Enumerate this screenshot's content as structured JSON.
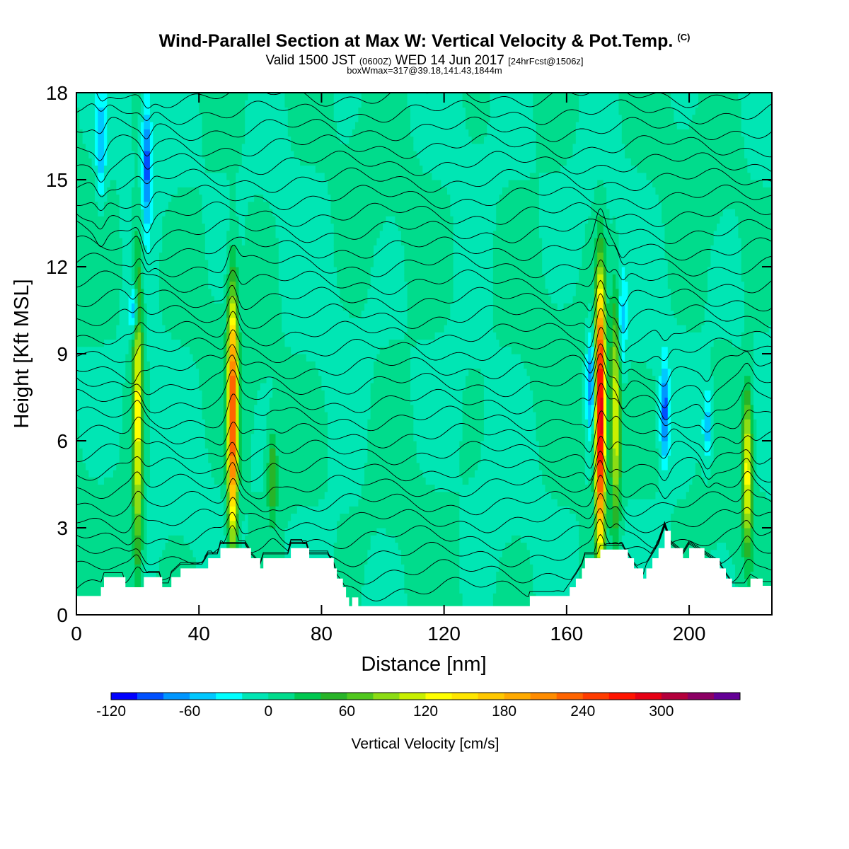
{
  "header": {
    "title": "Wind-Parallel Section at Max W: Vertical Velocity & Pot.Temp.",
    "copyright": "(C)",
    "subtitle_main": "Valid 1500 JST",
    "subtitle_utc": "(0600Z)",
    "subtitle_date": "WED 14 Jun 2017",
    "subtitle_fcst": "[24hrFcst@1506z]",
    "subtitle2": "boxWmax=317@39.18,141.43,1844m"
  },
  "chart_data": {
    "type": "heatmap",
    "xlabel": "Distance [nm]",
    "ylabel": "Height [Kft MSL]",
    "xlim": [
      0,
      227
    ],
    "ylim": [
      0,
      18
    ],
    "x_ticks": [
      0,
      40,
      80,
      120,
      160,
      200
    ],
    "y_ticks": [
      0,
      3,
      6,
      9,
      12,
      15,
      18
    ],
    "colorbar": {
      "label": "Vertical Velocity [cm/s]",
      "min": -120,
      "max": 340,
      "step": 20,
      "tick_labels": [
        -120,
        -60,
        0,
        60,
        120,
        180,
        240,
        300
      ],
      "colors": [
        "#0000ff",
        "#0050ff",
        "#0096ff",
        "#00c8ff",
        "#00ffff",
        "#00e6b4",
        "#00dc8c",
        "#00c850",
        "#28b428",
        "#50c81e",
        "#8cdc14",
        "#c8f000",
        "#ffff00",
        "#ffe600",
        "#ffc800",
        "#ffaa00",
        "#ff8c00",
        "#ff6400",
        "#ff3c00",
        "#ff1400",
        "#e60014",
        "#b4003c",
        "#8c0064",
        "#640096"
      ]
    },
    "background_value_cms": 0,
    "updrafts": [
      {
        "x": 20,
        "z_min": 1.2,
        "z_max": 13,
        "peak_cms": 130
      },
      {
        "x": 51,
        "z_min": 2.0,
        "z_max": 11.5,
        "peak_cms": 250
      },
      {
        "x": 64,
        "z_min": 3.0,
        "z_max": 6.5,
        "peak_cms": 60
      },
      {
        "x": 171,
        "z_min": 1.8,
        "z_max": 12,
        "peak_cms": 317
      },
      {
        "x": 176,
        "z_min": 2.5,
        "z_max": 11.5,
        "peak_cms": 120
      },
      {
        "x": 219,
        "z_min": 2.0,
        "z_max": 8.0,
        "peak_cms": 130
      }
    ],
    "downdrafts": [
      {
        "x": 8,
        "z_min": 14,
        "z_max": 18,
        "peak_cms": -60
      },
      {
        "x": 23,
        "z_min": 13,
        "z_max": 18,
        "peak_cms": -90
      },
      {
        "x": 19,
        "z_min": 9.5,
        "z_max": 11.5,
        "peak_cms": -90
      },
      {
        "x": 168,
        "z_min": 6,
        "z_max": 10,
        "peak_cms": -90
      },
      {
        "x": 178,
        "z_min": 8,
        "z_max": 12,
        "peak_cms": -50
      },
      {
        "x": 192,
        "z_min": 5,
        "z_max": 9,
        "peak_cms": -90
      },
      {
        "x": 206,
        "z_min": 5,
        "z_max": 8,
        "peak_cms": -60
      }
    ],
    "terrain_kft": [
      [
        0,
        0.65
      ],
      [
        7,
        0.65
      ],
      [
        8,
        0.95
      ],
      [
        9,
        1.3
      ],
      [
        15,
        1.3
      ],
      [
        16,
        0.95
      ],
      [
        21,
        0.95
      ],
      [
        22,
        1.3
      ],
      [
        27,
        1.3
      ],
      [
        28,
        0.95
      ],
      [
        30,
        0.95
      ],
      [
        31,
        1.3
      ],
      [
        34,
        1.6
      ],
      [
        41,
        1.6
      ],
      [
        43,
        1.95
      ],
      [
        46,
        1.95
      ],
      [
        47,
        2.3
      ],
      [
        55,
        2.3
      ],
      [
        57,
        1.95
      ],
      [
        60,
        1.6
      ],
      [
        61,
        1.95
      ],
      [
        69,
        1.95
      ],
      [
        70,
        2.3
      ],
      [
        75,
        2.3
      ],
      [
        76,
        1.95
      ],
      [
        82,
        1.95
      ],
      [
        84,
        1.6
      ],
      [
        85,
        1.25
      ],
      [
        87,
        0.95
      ],
      [
        88,
        0.6
      ],
      [
        89,
        0.3
      ],
      [
        90,
        0.6
      ],
      [
        92,
        0.3
      ],
      [
        147,
        0.3
      ],
      [
        148,
        0.65
      ],
      [
        159,
        0.65
      ],
      [
        161,
        0.95
      ],
      [
        163,
        1.25
      ],
      [
        165,
        1.6
      ],
      [
        166,
        1.95
      ],
      [
        170,
        1.95
      ],
      [
        171,
        2.25
      ],
      [
        178,
        2.25
      ],
      [
        180,
        1.95
      ],
      [
        182,
        1.6
      ],
      [
        185,
        1.25
      ],
      [
        186,
        1.6
      ],
      [
        188,
        1.95
      ],
      [
        190,
        2.3
      ],
      [
        192,
        2.9
      ],
      [
        194,
        2.3
      ],
      [
        198,
        1.95
      ],
      [
        200,
        2.3
      ],
      [
        205,
        1.95
      ],
      [
        210,
        1.6
      ],
      [
        212,
        1.25
      ],
      [
        214,
        0.95
      ],
      [
        218,
        0.95
      ],
      [
        220,
        1.25
      ],
      [
        224,
        1.0
      ],
      [
        227,
        1.0
      ]
    ],
    "theta_contour_count": 30
  }
}
